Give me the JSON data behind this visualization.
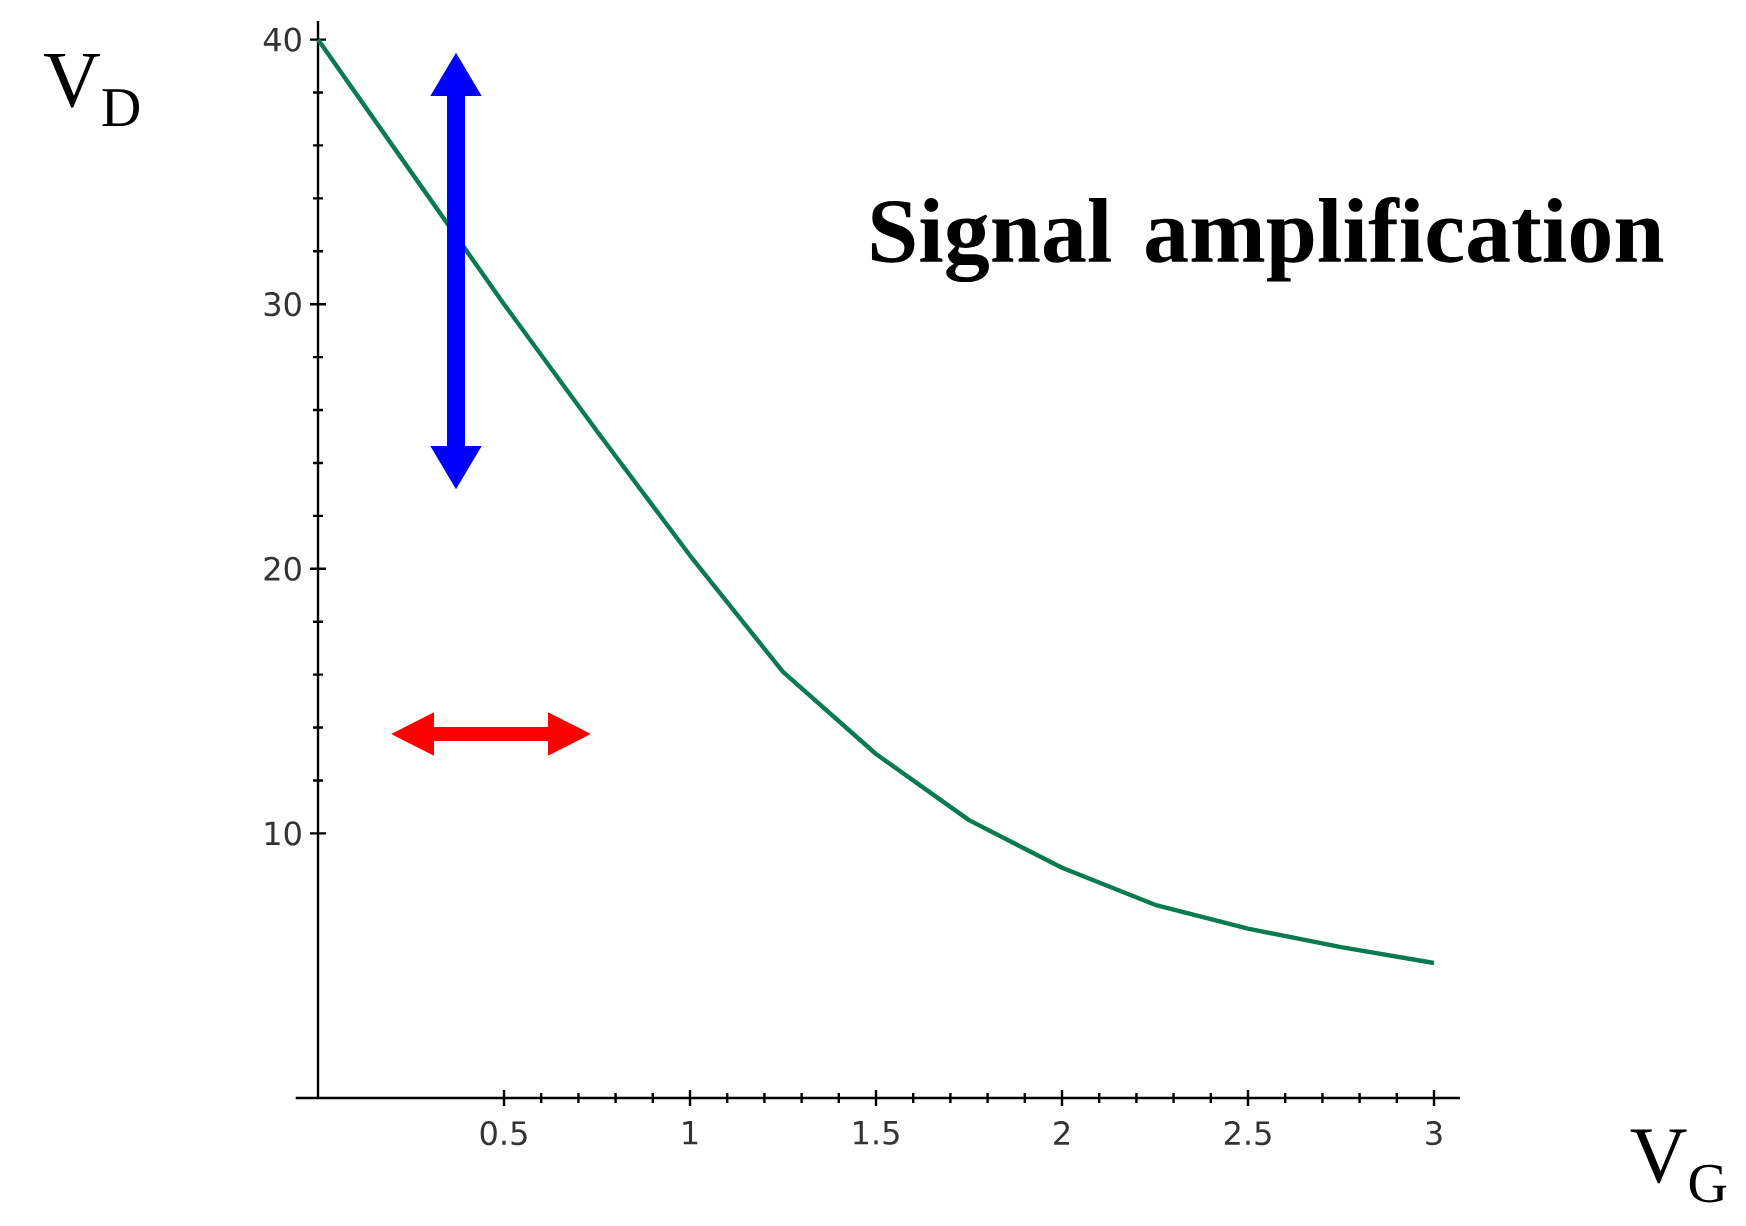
{
  "chart_data": {
    "type": "line",
    "xlabel": "V$_{G}$",
    "ylabel": "V$_{D}$",
    "annotations": [
      "Signal amplification"
    ],
    "x": [
      0,
      0.25,
      0.5,
      0.75,
      1,
      1.25,
      1.5,
      1.75,
      2,
      2.25,
      2.5,
      2.75,
      3
    ],
    "series": [
      {
        "color": "#0a7a50",
        "values": [
          40,
          35,
          30,
          25.2,
          20.5,
          16.1,
          13,
          10.5,
          8.7,
          7.3,
          6.4,
          5.7,
          5.1
        ]
      }
    ],
    "xlim": [
      -0.06,
      3.07
    ],
    "ylim": [
      0,
      40.7
    ],
    "xticks": [
      0.5,
      1,
      1.5,
      2,
      2.5,
      3
    ],
    "yticks": [
      10,
      20,
      30,
      40
    ]
  }
}
